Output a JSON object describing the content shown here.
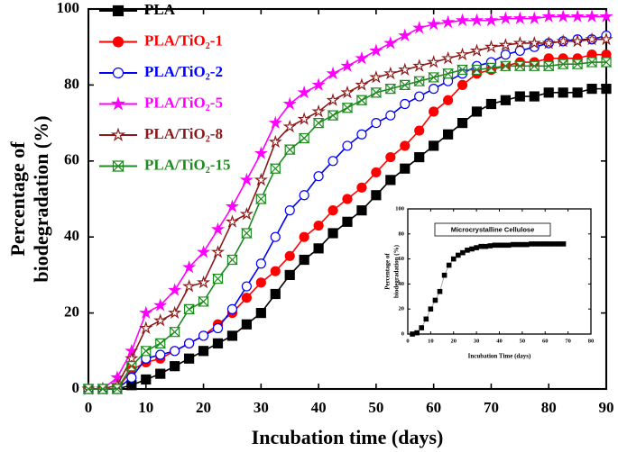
{
  "chart_data": [
    {
      "type": "line",
      "xlabel": "Incubation time (days)",
      "ylabel": [
        "Percentage of",
        "biodegradation (%)"
      ],
      "xlim": [
        0,
        90
      ],
      "xticks": [
        0,
        10,
        20,
        30,
        40,
        50,
        60,
        70,
        80,
        90
      ],
      "ylim": [
        0,
        100
      ],
      "yticks": [
        0,
        20,
        40,
        60,
        80,
        100
      ],
      "legend": "upper left",
      "x": [
        0,
        2.5,
        5,
        7.5,
        10,
        12.5,
        15,
        17.5,
        20,
        22.5,
        25,
        27.5,
        30,
        32.5,
        35,
        37.5,
        40,
        42.5,
        45,
        47.5,
        50,
        52.5,
        55,
        57.5,
        60,
        62.5,
        65,
        67.5,
        70,
        72.5,
        75,
        77.5,
        80,
        82.5,
        85,
        87.5,
        90
      ],
      "series": [
        {
          "name": "PLA",
          "color": "#000000",
          "marker": "square",
          "values": [
            0,
            0,
            0,
            1,
            2.5,
            4,
            6,
            8,
            10,
            12,
            14,
            17,
            20,
            25,
            30,
            34,
            37,
            41,
            44,
            47,
            51,
            55,
            58,
            61,
            64,
            67,
            70,
            73,
            75,
            76,
            77,
            77,
            78,
            78,
            78,
            79,
            79
          ]
        },
        {
          "name": "PLA/TiO₂-1",
          "color": "#ff0000",
          "marker": "circle",
          "values": [
            0,
            0,
            0,
            5,
            7,
            8,
            10,
            12,
            14,
            17,
            20,
            24,
            28,
            31,
            35,
            40,
            43,
            47,
            50,
            53,
            57,
            61,
            64,
            68,
            73,
            76,
            80,
            83,
            84,
            85,
            86,
            86,
            87,
            87,
            87,
            88,
            88
          ]
        },
        {
          "name": "PLA/TiO₂-2",
          "color": "#0000ff",
          "marker": "open-circle",
          "values": [
            0,
            0,
            0,
            3,
            8,
            9,
            10,
            12,
            14,
            16,
            21,
            27,
            33,
            40,
            47,
            51,
            56,
            60,
            64,
            67,
            70,
            72,
            75,
            77,
            79,
            81,
            83,
            85,
            86,
            88,
            89,
            90,
            91,
            91.5,
            92,
            92,
            93
          ]
        },
        {
          "name": "PLA/TiO₂-5",
          "color": "#ff00ff",
          "marker": "star",
          "values": [
            0,
            0,
            3,
            10,
            20,
            22,
            26,
            32,
            36,
            42,
            48,
            55,
            62,
            70,
            75,
            78,
            80,
            83,
            85,
            87,
            89,
            91,
            93,
            95,
            96,
            96.5,
            97,
            97,
            97,
            97.5,
            97.5,
            97.5,
            98,
            98,
            98,
            98,
            98
          ]
        },
        {
          "name": "PLA/TiO₂-8",
          "color": "#8b1a1a",
          "marker": "open-star",
          "values": [
            0,
            0,
            1,
            8,
            16,
            18,
            20,
            27,
            28,
            36,
            44,
            46,
            55,
            65,
            69,
            71,
            73,
            76,
            78,
            80,
            82,
            83,
            84,
            85,
            86,
            87,
            88,
            89,
            90,
            90.5,
            91,
            91,
            91,
            91.5,
            91.5,
            92,
            92
          ]
        },
        {
          "name": "PLA/TiO₂-15",
          "color": "#1f8a1f",
          "marker": "hourglass",
          "values": [
            0,
            0,
            0,
            6,
            10,
            12,
            15,
            21,
            23,
            29,
            34,
            41,
            50,
            58,
            63,
            66,
            70,
            72,
            74,
            76,
            78,
            79,
            80,
            81,
            82,
            83,
            84,
            84,
            84.5,
            85,
            85,
            85,
            85,
            85.5,
            85.5,
            86,
            86
          ]
        }
      ]
    },
    {
      "type": "line",
      "title": "Microcrystalline Cellulose",
      "xlabel": "Incubation Time (days)",
      "ylabel": [
        "Percentage of",
        "biodegradation (%)"
      ],
      "xlim": [
        0,
        80
      ],
      "xticks": [
        0,
        10,
        20,
        30,
        40,
        50,
        60,
        70,
        80
      ],
      "ylim": [
        0,
        100
      ],
      "yticks": [
        0,
        20,
        40,
        60,
        80,
        100
      ],
      "color": "#000000",
      "line_color": "#999999",
      "marker": "square",
      "x": [
        2,
        4,
        6,
        8,
        10,
        12,
        14,
        16,
        18,
        20,
        22,
        24,
        26,
        28,
        30,
        32,
        34,
        36,
        38,
        40,
        42,
        44,
        46,
        48,
        50,
        52,
        54,
        56,
        58,
        60,
        62,
        64,
        66,
        68
      ],
      "values": [
        0,
        1,
        5,
        12,
        20,
        27,
        34,
        47,
        55,
        60,
        63,
        65,
        67,
        68,
        69,
        70,
        70,
        70.5,
        71,
        71,
        71,
        71,
        71.5,
        71.5,
        71.5,
        71.5,
        72,
        72,
        72,
        72,
        72,
        72,
        72,
        72
      ]
    }
  ]
}
